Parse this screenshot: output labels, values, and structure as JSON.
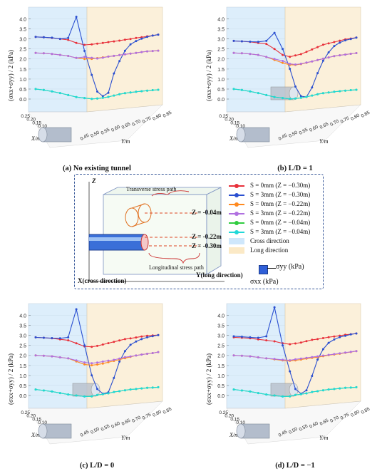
{
  "chart_data": [
    {
      "type": "line",
      "id": "a",
      "caption": "(a) No existing tunnel",
      "ylabel": "(σxx+σyy) / 2 (kPa)",
      "xaxis_label": "X/m",
      "yaxis_label": "Y/m",
      "z_ticks": [
        "0.0",
        "0.5",
        "1.0",
        "1.5",
        "2.0",
        "2.5",
        "3.0",
        "3.5",
        "4.0"
      ],
      "x_ticks": [
        "0.25",
        "0.20",
        "0.15",
        "0.10",
        "0.05",
        "0.00",
        "-0.05"
      ],
      "y_ticks": [
        "0.45",
        "0.50",
        "0.55",
        "0.60",
        "0.65",
        "0.70",
        "0.75",
        "0.80",
        "0.85"
      ],
      "zlim": [
        0,
        4.3
      ],
      "tunnel": false,
      "series": [
        {
          "name": "S = 0mm (Z = −0.30m)",
          "color": "#e8303a",
          "z": [
            3.1,
            3.08,
            3.05,
            3.0,
            2.95,
            2.8,
            2.7,
            2.72,
            2.74,
            2.76,
            2.78,
            2.8,
            2.82,
            2.85,
            2.87,
            2.9,
            2.92,
            2.95,
            2.97,
            3.0
          ]
        },
        {
          "name": "S = 3mm (Z = −0.30m)",
          "color": "#2a4fd0",
          "z": [
            3.1,
            3.08,
            3.06,
            3.0,
            3.05,
            4.1,
            2.4,
            1.2,
            0.35,
            0.1,
            0.25,
            1.2,
            1.8,
            2.3,
            2.6,
            2.75,
            2.85,
            2.92,
            2.97,
            3.0
          ]
        },
        {
          "name": "S = 0mm (Z = −0.22m)",
          "color": "#ff8a20",
          "z": [
            2.3,
            2.28,
            2.25,
            2.2,
            2.15,
            2.05,
            2.0,
            2.0,
            2.02,
            2.04,
            2.06,
            2.08,
            2.1,
            2.12,
            2.14,
            2.16,
            2.18,
            2.2,
            2.2,
            2.2
          ]
        },
        {
          "name": "S = 3mm (Z = −0.22m)",
          "color": "#b070e0",
          "z": [
            2.3,
            2.28,
            2.25,
            2.2,
            2.15,
            2.05,
            2.1,
            2.05,
            2.0,
            2.02,
            2.06,
            2.08,
            2.1,
            2.12,
            2.14,
            2.16,
            2.18,
            2.2,
            2.2,
            2.2
          ]
        },
        {
          "name": "S = 0mm (Z = −0.04m)",
          "color": "#30cc40",
          "z": [
            0.5,
            0.45,
            0.38,
            0.3,
            0.2,
            0.1,
            0.05,
            0.0,
            0.0,
            0.02,
            0.05,
            0.1,
            0.15,
            0.18,
            0.2,
            0.22,
            0.23,
            0.24,
            0.25,
            0.25
          ]
        },
        {
          "name": "S = 3mm (Z = −0.04m)",
          "color": "#20d8d8",
          "z": [
            0.5,
            0.45,
            0.38,
            0.3,
            0.2,
            0.1,
            0.05,
            0.0,
            0.0,
            0.02,
            0.05,
            0.1,
            0.15,
            0.18,
            0.2,
            0.22,
            0.23,
            0.24,
            0.25,
            0.25
          ]
        }
      ]
    },
    {
      "type": "line",
      "id": "b",
      "caption": "(b) L/D = 1",
      "ylabel": "(σxx+σyy) / 2 (kPa)",
      "xaxis_label": "X/m",
      "yaxis_label": "Y/m",
      "z_ticks": [
        "0.0",
        "0.5",
        "1.0",
        "1.5",
        "2.0",
        "2.5",
        "3.0",
        "3.5",
        "4.0"
      ],
      "x_ticks": [
        "0.25",
        "0.20",
        "0.15",
        "0.10",
        "0.05",
        "0.00",
        "-0.05"
      ],
      "y_ticks": [
        "0.45",
        "0.50",
        "0.55",
        "0.60",
        "0.65",
        "0.70",
        "0.75",
        "0.80",
        "0.85"
      ],
      "zlim": [
        0,
        4.3
      ],
      "tunnel": true,
      "series": [
        {
          "name": "S = 0mm (Z = −0.30m)",
          "color": "#e8303a",
          "z": [
            2.9,
            2.88,
            2.85,
            2.8,
            2.75,
            2.5,
            2.2,
            2.1,
            2.15,
            2.2,
            2.3,
            2.4,
            2.5,
            2.6,
            2.65,
            2.7,
            2.75,
            2.8,
            2.82,
            2.85
          ]
        },
        {
          "name": "S = 3mm (Z = −0.30m)",
          "color": "#2a4fd0",
          "z": [
            2.9,
            2.88,
            2.86,
            2.85,
            2.9,
            3.3,
            2.5,
            1.5,
            0.6,
            0.1,
            0.05,
            0.5,
            1.2,
            1.8,
            2.2,
            2.5,
            2.65,
            2.75,
            2.8,
            2.85
          ]
        },
        {
          "name": "S = 0mm (Z = −0.22m)",
          "color": "#ff8a20",
          "z": [
            2.3,
            2.28,
            2.25,
            2.2,
            2.1,
            1.95,
            1.8,
            1.7,
            1.68,
            1.7,
            1.75,
            1.8,
            1.85,
            1.9,
            1.95,
            2.0,
            2.02,
            2.04,
            2.06,
            2.08
          ]
        },
        {
          "name": "S = 3mm (Z = −0.22m)",
          "color": "#b070e0",
          "z": [
            2.3,
            2.28,
            2.25,
            2.2,
            2.1,
            2.0,
            1.9,
            1.75,
            1.7,
            1.72,
            1.76,
            1.8,
            1.85,
            1.9,
            1.95,
            2.0,
            2.02,
            2.04,
            2.06,
            2.08
          ]
        },
        {
          "name": "S = 0mm (Z = −0.04m)",
          "color": "#30cc40",
          "z": [
            0.5,
            0.45,
            0.38,
            0.3,
            0.2,
            0.1,
            0.05,
            0.0,
            0.0,
            0.02,
            0.05,
            0.1,
            0.15,
            0.18,
            0.2,
            0.22,
            0.23,
            0.24,
            0.25,
            0.25
          ]
        },
        {
          "name": "S = 3mm (Z = −0.04m)",
          "color": "#20d8d8",
          "z": [
            0.5,
            0.45,
            0.38,
            0.3,
            0.2,
            0.1,
            0.05,
            0.0,
            0.0,
            0.02,
            0.05,
            0.1,
            0.15,
            0.18,
            0.2,
            0.22,
            0.23,
            0.24,
            0.25,
            0.25
          ]
        }
      ]
    },
    {
      "type": "line",
      "id": "c",
      "caption": "(c) L/D = 0",
      "ylabel": "(σxx+σyy) / 2 (kPa)",
      "xaxis_label": "X/m",
      "yaxis_label": "Y/m",
      "z_ticks": [
        "0.0",
        "0.5",
        "1.0",
        "1.5",
        "2.0",
        "2.5",
        "3.0",
        "3.5",
        "4.0"
      ],
      "x_ticks": [
        "0.25",
        "0.20",
        "0.15",
        "0.10",
        "0.05",
        "0.00",
        "-0.05"
      ],
      "y_ticks": [
        "0.45",
        "0.50",
        "0.55",
        "0.60",
        "0.65",
        "0.70",
        "0.75",
        "0.80",
        "0.85"
      ],
      "zlim": [
        0,
        4.3
      ],
      "tunnel": true,
      "series": [
        {
          "name": "S = 0mm (Z = −0.30m)",
          "color": "#e8303a",
          "z": [
            2.9,
            2.88,
            2.85,
            2.8,
            2.75,
            2.6,
            2.45,
            2.42,
            2.45,
            2.5,
            2.55,
            2.6,
            2.65,
            2.7,
            2.72,
            2.75,
            2.78,
            2.8,
            2.8,
            2.8
          ]
        },
        {
          "name": "S = 3mm (Z = −0.30m)",
          "color": "#2a4fd0",
          "z": [
            2.9,
            2.88,
            2.86,
            2.85,
            2.9,
            4.3,
            2.5,
            1.0,
            0.3,
            0.05,
            0.1,
            0.8,
            1.6,
            2.1,
            2.4,
            2.55,
            2.65,
            2.72,
            2.76,
            2.8
          ]
        },
        {
          "name": "S = 0mm (Z = −0.22m)",
          "color": "#ff8a20",
          "z": [
            2.0,
            1.98,
            1.95,
            1.9,
            1.85,
            1.7,
            1.55,
            1.5,
            1.52,
            1.55,
            1.6,
            1.65,
            1.7,
            1.75,
            1.8,
            1.85,
            1.88,
            1.9,
            1.92,
            1.95
          ]
        },
        {
          "name": "S = 3mm (Z = −0.22m)",
          "color": "#b070e0",
          "z": [
            2.0,
            1.98,
            1.95,
            1.9,
            1.85,
            1.75,
            1.65,
            1.6,
            1.62,
            1.65,
            1.68,
            1.7,
            1.75,
            1.8,
            1.82,
            1.85,
            1.88,
            1.9,
            1.92,
            1.95
          ]
        },
        {
          "name": "S = 0mm (Z = −0.04m)",
          "color": "#30cc40",
          "z": [
            0.3,
            0.25,
            0.2,
            0.12,
            0.05,
            0.0,
            -0.05,
            -0.05,
            0.0,
            0.02,
            0.05,
            0.1,
            0.12,
            0.15,
            0.17,
            0.18,
            0.19,
            0.2,
            0.2,
            0.2
          ]
        },
        {
          "name": "S = 3mm (Z = −0.04m)",
          "color": "#20d8d8",
          "z": [
            0.3,
            0.25,
            0.2,
            0.12,
            0.05,
            0.0,
            -0.05,
            -0.05,
            0.0,
            0.02,
            0.05,
            0.1,
            0.12,
            0.15,
            0.17,
            0.18,
            0.19,
            0.2,
            0.2,
            0.2
          ]
        }
      ]
    },
    {
      "type": "line",
      "id": "d",
      "caption": "(d) L/D = −1",
      "ylabel": "(σxx+σyy) / 2 (kPa)",
      "xaxis_label": "X/m",
      "yaxis_label": "Y/m",
      "z_ticks": [
        "0.0",
        "0.5",
        "1.0",
        "1.5",
        "2.0",
        "2.5",
        "3.0",
        "3.5",
        "4.0"
      ],
      "x_ticks": [
        "0.25",
        "0.20",
        "0.15",
        "0.10",
        "0.05",
        "0.00",
        "-0.05"
      ],
      "y_ticks": [
        "0.45",
        "0.50",
        "0.55",
        "0.60",
        "0.65",
        "0.70",
        "0.75",
        "0.80",
        "0.85"
      ],
      "zlim": [
        0,
        4.3
      ],
      "tunnel": true,
      "series": [
        {
          "name": "S = 0mm (Z = −0.30m)",
          "color": "#e8303a",
          "z": [
            2.9,
            2.88,
            2.85,
            2.8,
            2.75,
            2.7,
            2.6,
            2.55,
            2.57,
            2.6,
            2.65,
            2.7,
            2.72,
            2.75,
            2.78,
            2.8,
            2.82,
            2.85,
            2.86,
            2.88
          ]
        },
        {
          "name": "S = 3mm (Z = −0.30m)",
          "color": "#2a4fd0",
          "z": [
            2.95,
            2.93,
            2.9,
            2.88,
            2.95,
            4.4,
            2.5,
            1.2,
            0.3,
            0.05,
            0.2,
            0.9,
            1.7,
            2.2,
            2.5,
            2.65,
            2.75,
            2.8,
            2.85,
            2.88
          ]
        },
        {
          "name": "S = 0mm (Z = −0.22m)",
          "color": "#ff8a20",
          "z": [
            2.0,
            1.98,
            1.95,
            1.9,
            1.85,
            1.8,
            1.75,
            1.72,
            1.73,
            1.75,
            1.78,
            1.8,
            1.82,
            1.85,
            1.88,
            1.9,
            1.92,
            1.95,
            1.97,
            2.0
          ]
        },
        {
          "name": "S = 3mm (Z = −0.22m)",
          "color": "#b070e0",
          "z": [
            2.0,
            1.98,
            1.95,
            1.9,
            1.85,
            1.82,
            1.78,
            1.75,
            1.78,
            1.8,
            1.82,
            1.84,
            1.86,
            1.88,
            1.9,
            1.92,
            1.94,
            1.96,
            1.98,
            2.0
          ]
        },
        {
          "name": "S = 0mm (Z = −0.04m)",
          "color": "#30cc40",
          "z": [
            0.3,
            0.25,
            0.2,
            0.12,
            0.05,
            0.0,
            -0.05,
            -0.05,
            0.0,
            0.02,
            0.05,
            0.1,
            0.12,
            0.15,
            0.17,
            0.18,
            0.19,
            0.2,
            0.2,
            0.2
          ]
        },
        {
          "name": "S = 3mm (Z = −0.04m)",
          "color": "#20d8d8",
          "z": [
            0.3,
            0.25,
            0.2,
            0.12,
            0.05,
            0.0,
            -0.05,
            -0.05,
            0.0,
            0.02,
            0.05,
            0.1,
            0.12,
            0.15,
            0.17,
            0.18,
            0.19,
            0.2,
            0.2,
            0.2
          ]
        }
      ]
    }
  ],
  "legend": {
    "items": [
      {
        "label": "S = 0mm  (Z = −0.30m)",
        "color": "#e8303a"
      },
      {
        "label": "S = 3mm  (Z = −0.30m)",
        "color": "#2a4fd0"
      },
      {
        "label": "S = 0mm  (Z = −0.22m)",
        "color": "#ff8a20"
      },
      {
        "label": "S = 3mm  (Z = −0.22m)",
        "color": "#b070e0"
      },
      {
        "label": "S = 0mm  (Z = −0.04m)",
        "color": "#30cc40"
      },
      {
        "label": "S = 3mm  (Z = −0.04m)",
        "color": "#20d8d8"
      }
    ],
    "cross_label": "Cross direction",
    "cross_color": "#cfe7fb",
    "long_label": "Long direction",
    "long_color": "#fbe9c6"
  },
  "diagram": {
    "z_axis": "Z",
    "x_axis": "X(cross direction)",
    "y_axis": "Y(long direction)",
    "transverse": "Transverse stress path",
    "longitudinal": "Longitudinal stress path",
    "z1": "Z = -0.04m",
    "z2": "Z = -0.22m",
    "z3": "Z = -0.30m",
    "syy": "σyy (kPa)",
    "sxx": "σxx (kPa)"
  }
}
